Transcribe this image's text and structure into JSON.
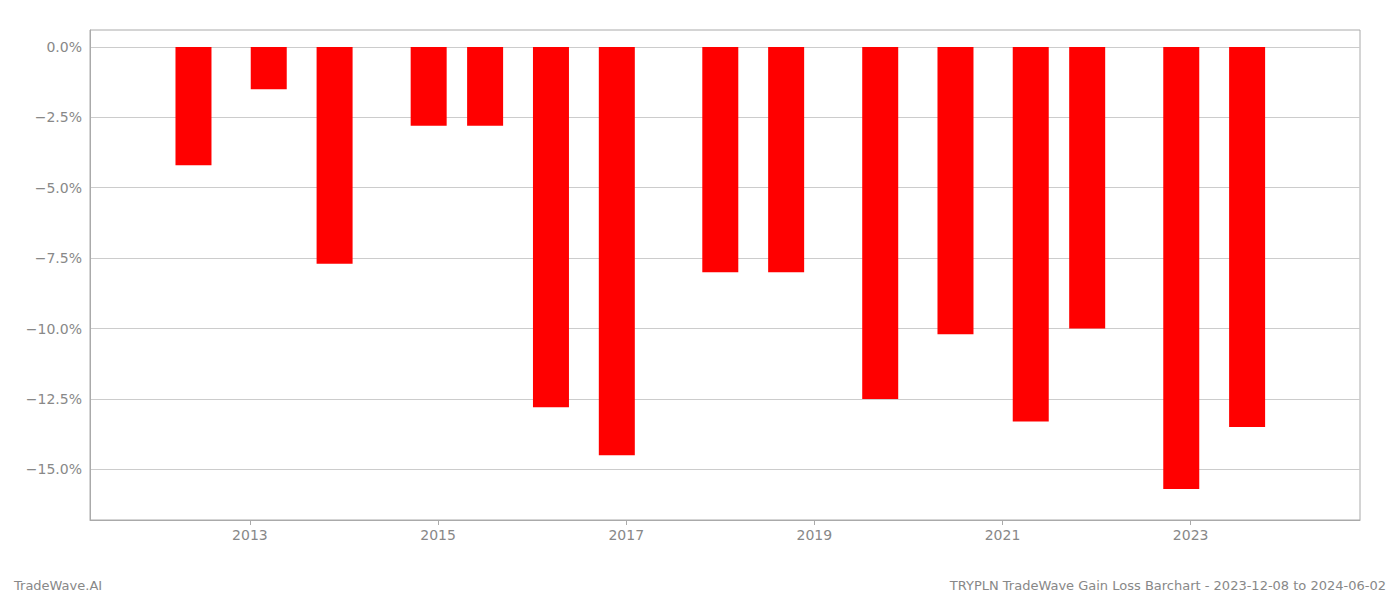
{
  "chart_data": {
    "type": "bar",
    "x": [
      2012.4,
      2013.2,
      2013.9,
      2014.9,
      2015.5,
      2016.2,
      2016.9,
      2018.0,
      2018.7,
      2019.7,
      2020.5,
      2021.3,
      2021.9,
      2022.9,
      2023.6
    ],
    "values": [
      -4.2,
      -1.5,
      -7.7,
      -2.8,
      -2.8,
      -12.8,
      -14.5,
      -8.0,
      -8.0,
      -12.5,
      -10.2,
      -13.3,
      -10.0,
      -15.7,
      -13.5
    ],
    "color": "#ff0000",
    "xlim": [
      2011.3,
      2024.8
    ],
    "xticks": [
      2013,
      2015,
      2017,
      2019,
      2021,
      2023
    ],
    "ylim": [
      -16.8,
      0.6
    ],
    "yticks": [
      {
        "value": 0.0,
        "label": "0.0%"
      },
      {
        "value": -2.5,
        "label": "−2.5%"
      },
      {
        "value": -5.0,
        "label": "−5.0%"
      },
      {
        "value": -7.5,
        "label": "−7.5%"
      },
      {
        "value": -10.0,
        "label": "−10.0%"
      },
      {
        "value": -12.5,
        "label": "−12.5%"
      },
      {
        "value": -15.0,
        "label": "−15.0%"
      }
    ],
    "grid": true,
    "annotations": [
      "TradeWave.AI",
      "TRYPLN TradeWave Gain Loss Barchart - 2023-12-08 to 2024-06-02"
    ]
  }
}
